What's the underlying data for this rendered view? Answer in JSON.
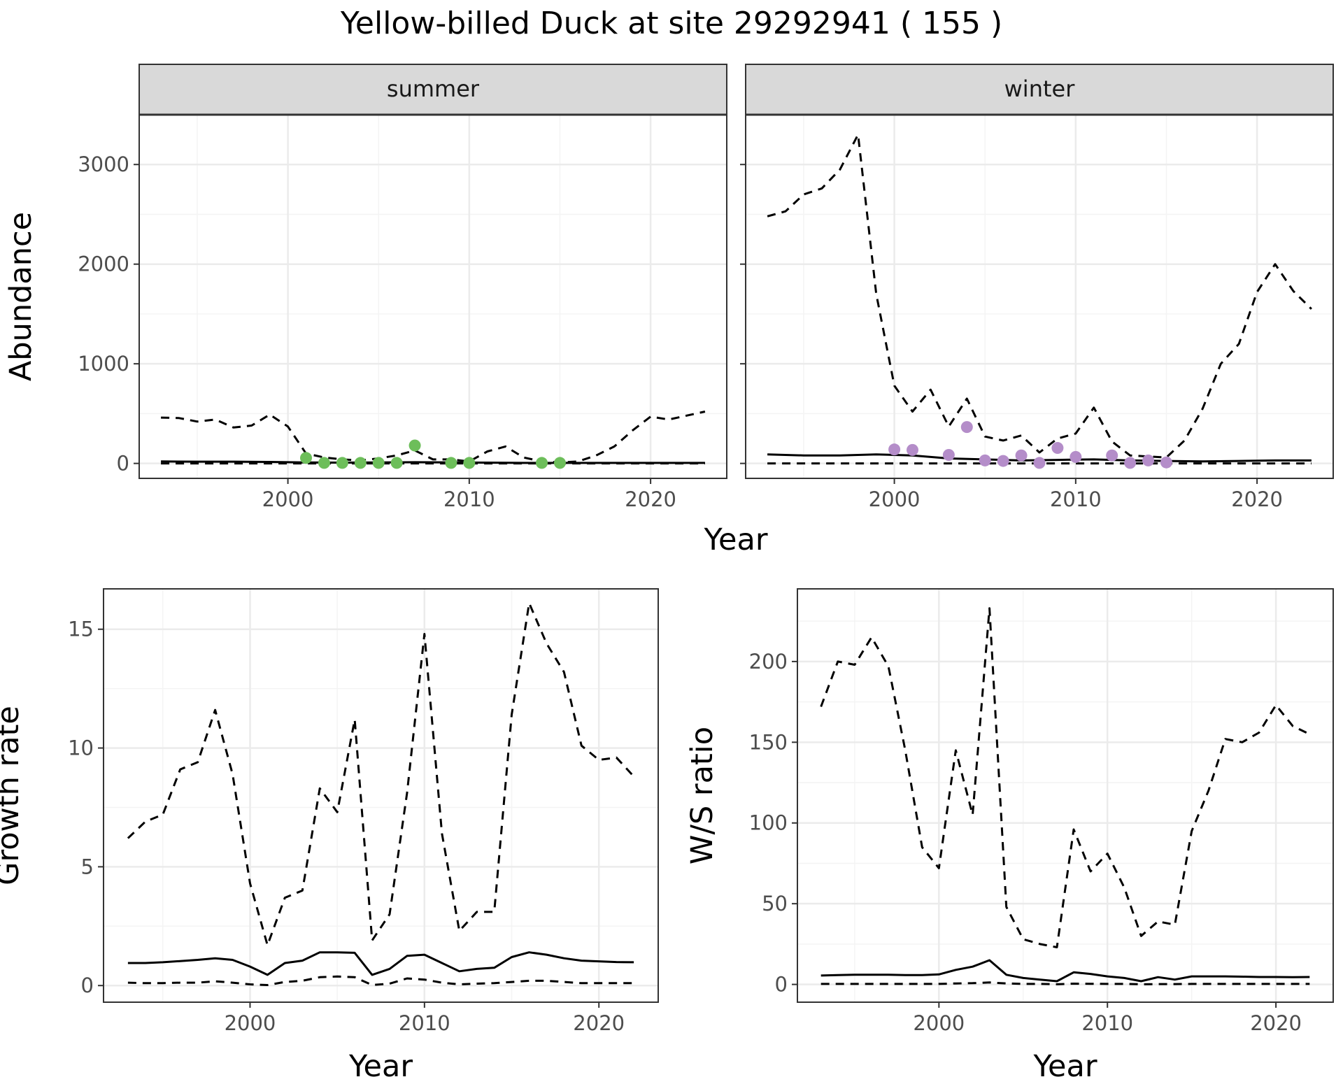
{
  "title": "Yellow-billed Duck at site 29292941 ( 155 )",
  "colors": {
    "summer_points": "#6DBE5A",
    "winter_points": "#B48DC9",
    "line": "#000000",
    "grid_major": "#EBEBEB",
    "grid_minor": "#F4F4F4",
    "strip_fill": "#D9D9D9",
    "panel_border": "#333333"
  },
  "chart_data": [
    {
      "type": "line",
      "facet": "summer",
      "strip_label": "summer",
      "xlabel": "Year",
      "ylabel": "Abundance",
      "xlim": [
        1991.8,
        2024.2
      ],
      "ylim": [
        -150,
        3500
      ],
      "x_ticks": [
        2000,
        2010,
        2020
      ],
      "x_tick_labels": [
        "2000",
        "2010",
        "2020"
      ],
      "y_ticks": [
        0,
        1000,
        2000,
        3000
      ],
      "y_tick_labels": [
        "0",
        "1000",
        "2000",
        "3000"
      ],
      "grid": true,
      "series": [
        {
          "name": "mean",
          "style": "solid",
          "x": [
            1993,
            1995,
            1997,
            1999,
            2001,
            2003,
            2005,
            2007,
            2009,
            2011,
            2013,
            2015,
            2017,
            2019,
            2021,
            2023
          ],
          "y": [
            20,
            18,
            18,
            15,
            10,
            8,
            10,
            12,
            10,
            8,
            5,
            5,
            5,
            5,
            5,
            5
          ]
        },
        {
          "name": "upper",
          "style": "dashed",
          "x": [
            1993,
            1994,
            1995,
            1996,
            1997,
            1998,
            1999,
            2000,
            2001,
            2002,
            2003,
            2004,
            2005,
            2006,
            2007,
            2008,
            2009,
            2010,
            2011,
            2012,
            2013,
            2014,
            2015,
            2016,
            2017,
            2018,
            2019,
            2020,
            2021,
            2022,
            2023
          ],
          "y": [
            460,
            455,
            420,
            440,
            360,
            380,
            490,
            370,
            100,
            60,
            40,
            30,
            50,
            80,
            130,
            40,
            40,
            20,
            120,
            170,
            60,
            20,
            10,
            20,
            80,
            170,
            330,
            470,
            440,
            480,
            520
          ]
        },
        {
          "name": "lower",
          "style": "dashed",
          "x": [
            1993,
            2023
          ],
          "y": [
            0,
            0
          ]
        },
        {
          "name": "observed",
          "style": "points",
          "color": "#6DBE5A",
          "x": [
            2001,
            2002,
            2003,
            2004,
            2005,
            2006,
            2007,
            2009,
            2010,
            2014,
            2015
          ],
          "y": [
            55,
            5,
            5,
            5,
            5,
            5,
            180,
            5,
            5,
            5,
            5
          ]
        }
      ]
    },
    {
      "type": "line",
      "facet": "winter",
      "strip_label": "winter",
      "xlabel": "Year",
      "ylabel": "Abundance",
      "xlim": [
        1991.8,
        2024.2
      ],
      "ylim": [
        -150,
        3500
      ],
      "x_ticks": [
        2000,
        2010,
        2020
      ],
      "x_tick_labels": [
        "2000",
        "2010",
        "2020"
      ],
      "y_ticks": [
        0,
        1000,
        2000,
        3000
      ],
      "grid": true,
      "series": [
        {
          "name": "mean",
          "style": "solid",
          "x": [
            1993,
            1995,
            1997,
            1999,
            2001,
            2003,
            2005,
            2007,
            2009,
            2011,
            2013,
            2015,
            2017,
            2019,
            2021,
            2023
          ],
          "y": [
            90,
            80,
            80,
            90,
            80,
            50,
            40,
            30,
            35,
            40,
            30,
            25,
            20,
            25,
            30,
            30
          ]
        },
        {
          "name": "upper",
          "style": "dashed",
          "x": [
            1993,
            1994,
            1995,
            1996,
            1997,
            1998,
            1999,
            2000,
            2001,
            2002,
            2003,
            2004,
            2005,
            2006,
            2007,
            2008,
            2009,
            2010,
            2011,
            2012,
            2013,
            2014,
            2015,
            2016,
            2017,
            2018,
            2019,
            2020,
            2021,
            2022,
            2023
          ],
          "y": [
            2480,
            2530,
            2700,
            2760,
            2950,
            3300,
            1700,
            780,
            520,
            740,
            370,
            650,
            270,
            230,
            280,
            110,
            250,
            300,
            560,
            220,
            80,
            70,
            60,
            230,
            550,
            1000,
            1200,
            1720,
            2000,
            1730,
            1550
          ]
        },
        {
          "name": "lower",
          "style": "dashed",
          "x": [
            1993,
            2023
          ],
          "y": [
            0,
            0
          ]
        },
        {
          "name": "observed",
          "style": "points",
          "color": "#B48DC9",
          "x": [
            2000,
            2001,
            2003,
            2004,
            2005,
            2006,
            2007,
            2008,
            2009,
            2010,
            2012,
            2013,
            2014,
            2015
          ],
          "y": [
            140,
            135,
            85,
            365,
            30,
            25,
            80,
            5,
            155,
            65,
            80,
            5,
            30,
            10
          ]
        }
      ]
    },
    {
      "type": "line",
      "facet": "growth",
      "xlabel": "Year",
      "ylabel": "Growth rate",
      "xlim": [
        1991.6,
        2023.4
      ],
      "ylim": [
        -0.7,
        16.7
      ],
      "x_ticks": [
        2000,
        2010,
        2020
      ],
      "x_tick_labels": [
        "2000",
        "2010",
        "2020"
      ],
      "y_ticks": [
        0,
        5,
        10,
        15
      ],
      "y_tick_labels": [
        "0",
        "5",
        "10",
        "15"
      ],
      "grid": true,
      "series": [
        {
          "name": "mean",
          "style": "solid",
          "x": [
            1993,
            1994,
            1995,
            1996,
            1997,
            1998,
            1999,
            2000,
            2001,
            2002,
            2003,
            2004,
            2005,
            2006,
            2007,
            2008,
            2009,
            2010,
            2011,
            2012,
            2013,
            2014,
            2015,
            2016,
            2017,
            2018,
            2019,
            2020,
            2021,
            2022
          ],
          "y": [
            0.95,
            0.95,
            0.98,
            1.03,
            1.08,
            1.15,
            1.08,
            0.8,
            0.45,
            0.95,
            1.05,
            1.4,
            1.4,
            1.38,
            0.45,
            0.7,
            1.25,
            1.3,
            0.95,
            0.6,
            0.7,
            0.75,
            1.2,
            1.4,
            1.3,
            1.15,
            1.05,
            1.02,
            0.99,
            0.98
          ]
        },
        {
          "name": "upper",
          "style": "dashed",
          "x": [
            1993,
            1994,
            1995,
            1996,
            1997,
            1998,
            1999,
            2000,
            2001,
            2002,
            2003,
            2004,
            2005,
            2006,
            2007,
            2008,
            2009,
            2010,
            2011,
            2012,
            2013,
            2014,
            2015,
            2016,
            2017,
            2018,
            2019,
            2020,
            2021,
            2022
          ],
          "y": [
            6.2,
            6.9,
            7.2,
            9.1,
            9.4,
            11.6,
            8.9,
            4.3,
            1.7,
            3.7,
            4.0,
            8.3,
            7.3,
            11.2,
            1.9,
            3.0,
            8.1,
            14.8,
            6.4,
            2.3,
            3.1,
            3.1,
            11.4,
            16.1,
            14.4,
            13.2,
            10.1,
            9.5,
            9.6,
            8.8
          ]
        },
        {
          "name": "lower",
          "style": "dashed",
          "x": [
            1993,
            1994,
            1995,
            1996,
            1997,
            1998,
            1999,
            2000,
            2001,
            2002,
            2003,
            2004,
            2005,
            2006,
            2007,
            2008,
            2009,
            2010,
            2011,
            2012,
            2013,
            2014,
            2015,
            2016,
            2017,
            2018,
            2019,
            2020,
            2021,
            2022
          ],
          "y": [
            0.12,
            0.1,
            0.1,
            0.12,
            0.12,
            0.18,
            0.12,
            0.05,
            0.02,
            0.15,
            0.2,
            0.35,
            0.38,
            0.35,
            0.02,
            0.08,
            0.3,
            0.25,
            0.12,
            0.05,
            0.08,
            0.1,
            0.15,
            0.2,
            0.2,
            0.15,
            0.1,
            0.1,
            0.1,
            0.1
          ]
        }
      ]
    },
    {
      "type": "line",
      "facet": "ws_ratio",
      "xlabel": "Year",
      "ylabel": "W/S ratio",
      "xlim": [
        1991.6,
        2023.4
      ],
      "ylim": [
        -11,
        245
      ],
      "x_ticks": [
        2000,
        2010,
        2020
      ],
      "x_tick_labels": [
        "2000",
        "2010",
        "2020"
      ],
      "y_ticks": [
        0,
        50,
        100,
        150,
        200
      ],
      "y_tick_labels": [
        "0",
        "50",
        "100",
        "150",
        "200"
      ],
      "grid": true,
      "series": [
        {
          "name": "mean",
          "style": "solid",
          "x": [
            1993,
            1994,
            1995,
            1996,
            1997,
            1998,
            1999,
            2000,
            2001,
            2002,
            2003,
            2004,
            2005,
            2006,
            2007,
            2008,
            2009,
            2010,
            2011,
            2012,
            2013,
            2014,
            2015,
            2016,
            2017,
            2018,
            2019,
            2020,
            2021,
            2022
          ],
          "y": [
            5.5,
            5.8,
            6,
            6,
            6,
            5.8,
            5.8,
            6.2,
            9,
            11,
            15,
            6,
            4,
            3,
            2,
            7.5,
            6.5,
            5,
            4,
            2,
            4.5,
            3,
            5,
            5,
            5,
            4.8,
            4.6,
            4.6,
            4.5,
            4.6
          ]
        },
        {
          "name": "upper",
          "style": "dashed",
          "x": [
            1993,
            1994,
            1995,
            1996,
            1997,
            1998,
            1999,
            2000,
            2001,
            2002,
            2003,
            2004,
            2005,
            2006,
            2007,
            2008,
            2009,
            2010,
            2011,
            2012,
            2013,
            2014,
            2015,
            2016,
            2017,
            2018,
            2019,
            2020,
            2021,
            2022
          ],
          "y": [
            172,
            200,
            198,
            215,
            197,
            145,
            85,
            72,
            145,
            105,
            233,
            48,
            28,
            25,
            23,
            96,
            70,
            81,
            60,
            30,
            39,
            37,
            95,
            120,
            152,
            150,
            156,
            173,
            160,
            155
          ]
        },
        {
          "name": "lower",
          "style": "dashed",
          "x": [
            1993,
            1994,
            1995,
            1996,
            1997,
            1998,
            1999,
            2000,
            2001,
            2002,
            2003,
            2004,
            2005,
            2006,
            2007,
            2008,
            2009,
            2010,
            2011,
            2012,
            2013,
            2014,
            2015,
            2016,
            2017,
            2018,
            2019,
            2020,
            2021,
            2022
          ],
          "y": [
            0.3,
            0.3,
            0.3,
            0.3,
            0.3,
            0.3,
            0.3,
            0.3,
            0.6,
            0.8,
            1.2,
            0.6,
            0.3,
            0.3,
            0.1,
            0.5,
            0.4,
            0.3,
            0.3,
            0.1,
            0.2,
            0.2,
            0.3,
            0.3,
            0.3,
            0.3,
            0.3,
            0.3,
            0.3,
            0.3
          ]
        }
      ]
    }
  ]
}
